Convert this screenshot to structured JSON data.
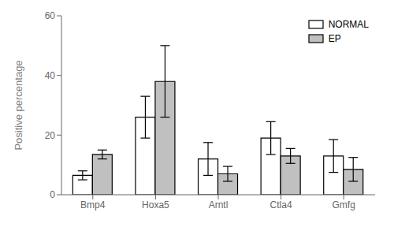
{
  "chart_data": {
    "type": "bar",
    "categories": [
      "Bmp4",
      "Hoxa5",
      "Arntl",
      "Ctla4",
      "Gmfg"
    ],
    "series": [
      {
        "name": "NORMAL",
        "color": "#FFFFFF",
        "values": [
          6.5,
          26.0,
          12.0,
          19.0,
          13.0
        ],
        "errors": [
          1.5,
          7.0,
          5.5,
          5.5,
          5.5
        ]
      },
      {
        "name": "EP",
        "color": "#C0C0C0",
        "values": [
          13.5,
          38.0,
          7.0,
          13.0,
          8.5
        ],
        "errors": [
          1.5,
          12.0,
          2.5,
          2.5,
          4.0
        ]
      }
    ],
    "ylabel": "Positive percentage",
    "ylim": [
      0,
      60
    ],
    "yticks": [
      0,
      20,
      40,
      60
    ],
    "legend": "upper right"
  }
}
